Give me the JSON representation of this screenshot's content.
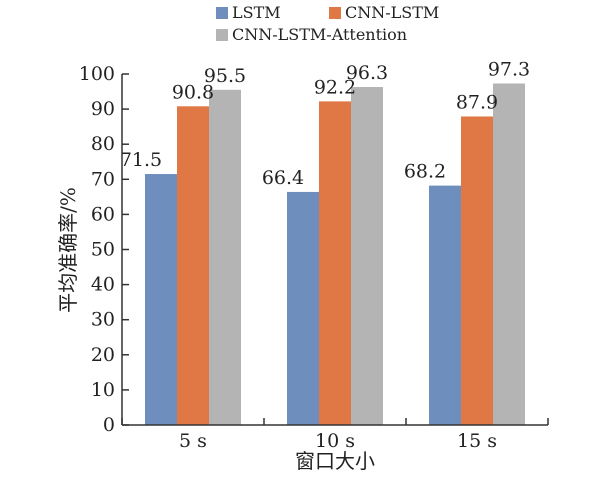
{
  "chart_data": {
    "type": "bar",
    "categories": [
      "5 s",
      "10 s",
      "15 s"
    ],
    "series": [
      {
        "name": "LSTM",
        "values": [
          71.5,
          66.4,
          68.2
        ],
        "color": "#6e8fbd"
      },
      {
        "name": "CNN-LSTM",
        "values": [
          90.8,
          92.2,
          87.9
        ],
        "color": "#e07845"
      },
      {
        "name": "CNN-LSTM-Attention",
        "values": [
          95.5,
          96.3,
          97.3
        ],
        "color": "#b4b4b4"
      }
    ],
    "xlabel": "窗口大小",
    "ylabel": "平均准确率/%",
    "ylim": [
      0,
      100
    ],
    "yticks": [
      0,
      10,
      20,
      30,
      40,
      50,
      60,
      70,
      80,
      90,
      100
    ],
    "grid": false,
    "legend_position": "top"
  }
}
